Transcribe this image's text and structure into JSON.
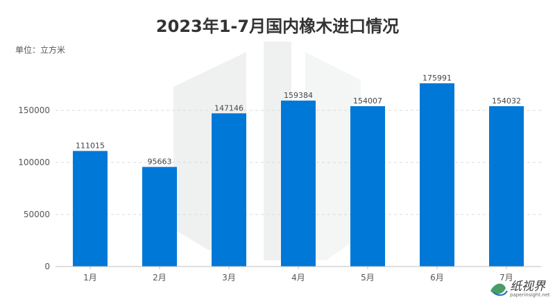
{
  "chart_data": {
    "type": "bar",
    "title": "2023年1-7月国内橡木进口情况",
    "unit_label": "单位：立方米",
    "categories": [
      "1月",
      "2月",
      "3月",
      "4月",
      "5月",
      "6月",
      "7月"
    ],
    "values": [
      111015,
      95663,
      147146,
      159384,
      154007,
      175991,
      154032
    ],
    "data_labels": [
      "111015",
      "95663",
      "147146",
      "159384",
      "154007",
      "175991",
      "154032"
    ],
    "y_ticks": [
      0,
      50000,
      100000,
      150000
    ],
    "y_tick_labels": [
      "0",
      "50000",
      "100000",
      "150000"
    ],
    "ylim": [
      0,
      200000
    ],
    "xlabel": "",
    "ylabel": "",
    "grid": true,
    "legend": "none",
    "bar_color": "#0078d7"
  },
  "watermark": {
    "text": "纸视界",
    "url": "paperinsight.net"
  },
  "colors": {
    "title": "#333333",
    "grid": "#d9d9d9",
    "axis": "#bfbfbf"
  }
}
